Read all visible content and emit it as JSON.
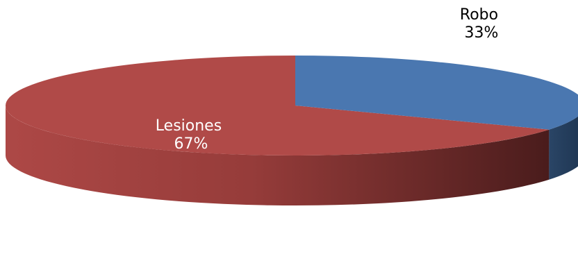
{
  "chart_data": {
    "type": "pie",
    "style": "3d",
    "title": "",
    "slices": [
      {
        "label": "Robo",
        "value": 33,
        "percent_label": "33%",
        "color": "#4a77b0",
        "side_color": "#2d4c72",
        "label_color": "#000000"
      },
      {
        "label": "Lesiones",
        "value": 67,
        "percent_label": "67%",
        "color": "#b04a48",
        "side_color": "#8a3432",
        "label_color": "#ffffff"
      }
    ],
    "legend": "none"
  }
}
